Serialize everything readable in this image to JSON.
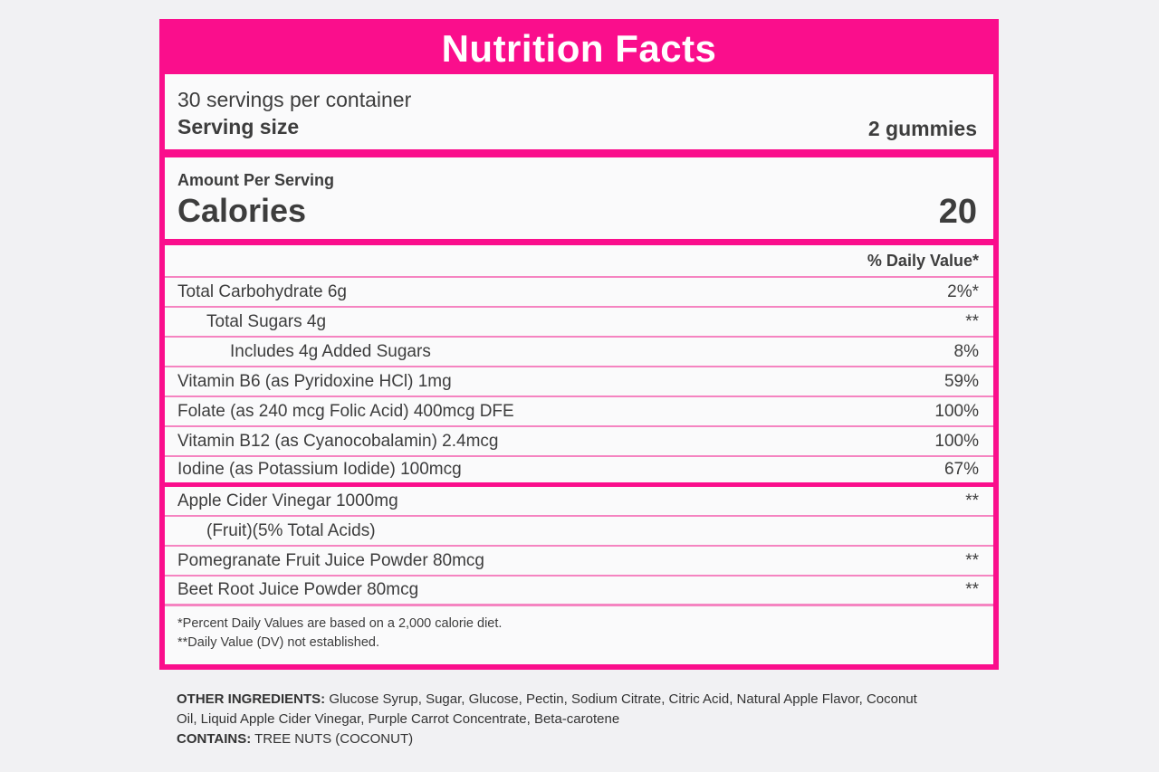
{
  "label": {
    "title": "Nutrition Facts",
    "servings_per_container": "30 servings per container",
    "serving_size_label": "Serving size",
    "serving_size_value": "2 gummies",
    "amount_per_serving": "Amount Per Serving",
    "calories_label": "Calories",
    "calories_value": "20",
    "daily_value_header": "% Daily Value*",
    "rows": [
      {
        "name": "Total Carbohydrate 6g",
        "value": "2%*"
      },
      {
        "name": "Total Sugars 4g",
        "value": "**"
      },
      {
        "name": "Includes 4g Added Sugars",
        "value": "8%"
      },
      {
        "name": "Vitamin B6 (as Pyridoxine HCl) 1mg",
        "value": "59%"
      },
      {
        "name": "Folate (as 240 mcg Folic Acid) 400mcg DFE",
        "value": "100%"
      },
      {
        "name": "Vitamin B12 (as Cyanocobalamin) 2.4mcg",
        "value": "100%"
      },
      {
        "name": "Iodine (as Potassium Iodide) 100mcg",
        "value": "67%"
      },
      {
        "name": "Apple Cider Vinegar 1000mg",
        "value": "**"
      },
      {
        "name": "(Fruit)(5% Total Acids)",
        "value": ""
      },
      {
        "name": "Pomegranate Fruit Juice Powder 80mcg",
        "value": "**"
      },
      {
        "name": "Beet Root Juice Powder 80mcg",
        "value": "**"
      }
    ],
    "footnotes": [
      "*Percent Daily Values are based on a 2,000 calorie diet.",
      "**Daily Value (DV) not established."
    ]
  },
  "other_ingredients": {
    "label": "OTHER INGREDIENTS:",
    "text": " Glucose Syrup, Sugar, Glucose, Pectin, Sodium Citrate, Citric Acid, Natural Apple Flavor, Coconut Oil, Liquid Apple Cider Vinegar, Purple Carrot Concentrate, Beta-carotene",
    "contains_label": "CONTAINS:",
    "contains_text": " TREE NUTS (COCONUT)"
  },
  "colors": {
    "brand_pink": "#FA0E8C",
    "divider_pink": "#F584C1",
    "text_dark": "#3D3D3D"
  }
}
